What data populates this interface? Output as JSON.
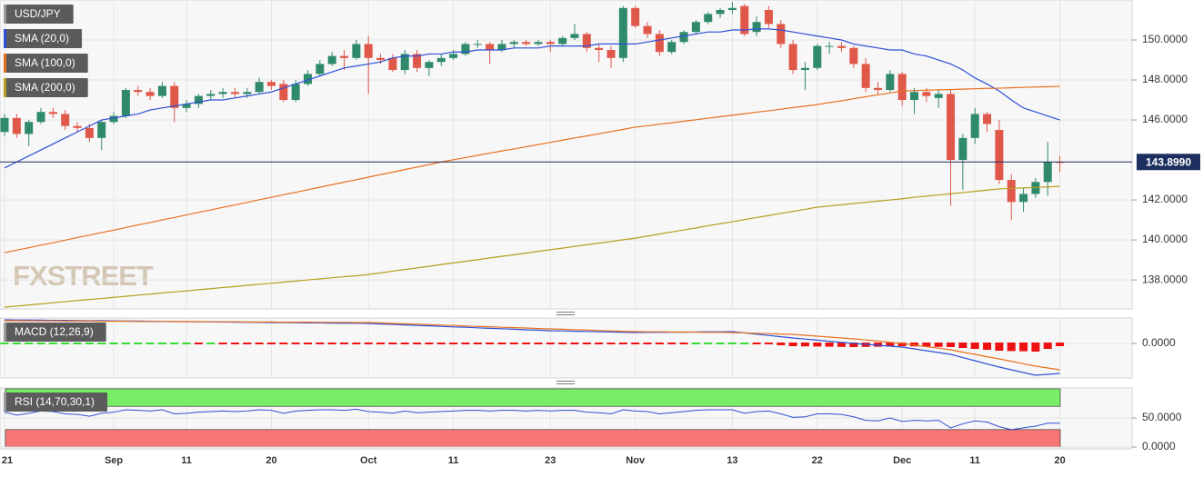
{
  "chart_data": [
    {
      "type": "candlestick",
      "name": "USD/JPY",
      "up_color": "#2f8a6c",
      "down_color": "#e0584a",
      "grid": true,
      "open": [
        145.4,
        146.1,
        145.3,
        145.9,
        146.4,
        146.3,
        145.7,
        145.6,
        145.1,
        145.9,
        146.2,
        147.5,
        147.4,
        147.2,
        147.7,
        146.6,
        146.8,
        147.2,
        147.3,
        147.4,
        147.3,
        147.4,
        147.9,
        147.8,
        147.0,
        147.8,
        148.3,
        148.8,
        149.2,
        149.1,
        149.8,
        149.1,
        149.1,
        148.5,
        149.3,
        148.6,
        148.9,
        149.1,
        149.3,
        149.8,
        149.8,
        149.5,
        149.8,
        149.9,
        149.8,
        149.9,
        149.8,
        150.1,
        150.3,
        149.6,
        149.5,
        149.1,
        151.6,
        150.7,
        150.3,
        149.4,
        149.9,
        150.4,
        150.9,
        151.3,
        151.5,
        151.7,
        150.4,
        151.5,
        150.8,
        149.8,
        148.5,
        148.6,
        149.7,
        149.7,
        149.6,
        148.8,
        147.6,
        147.5,
        148.3,
        147.0,
        147.4,
        147.1,
        147.3,
        144.0,
        145.1,
        146.3,
        145.5,
        143.0,
        141.9,
        142.3,
        142.9,
        143.9
      ],
      "high": [
        146.3,
        146.3,
        146.0,
        146.6,
        146.6,
        146.5,
        145.9,
        145.8,
        146.0,
        146.4,
        147.6,
        147.7,
        147.6,
        147.9,
        147.9,
        147.0,
        147.3,
        147.5,
        147.6,
        147.6,
        147.6,
        148.1,
        148.0,
        148.0,
        148.0,
        148.5,
        149.0,
        149.4,
        149.5,
        150.0,
        150.2,
        149.3,
        149.3,
        149.5,
        149.5,
        149.0,
        149.3,
        149.5,
        149.9,
        150.0,
        149.9,
        150.0,
        150.0,
        150.0,
        150.0,
        150.0,
        150.2,
        150.8,
        150.4,
        149.8,
        149.7,
        151.7,
        151.7,
        150.9,
        150.5,
        150.0,
        150.5,
        151.0,
        151.4,
        151.6,
        151.9,
        151.8,
        151.2,
        151.7,
        151.0,
        150.0,
        148.9,
        149.8,
        149.9,
        149.9,
        149.7,
        149.1,
        147.9,
        148.5,
        148.4,
        147.6,
        147.6,
        147.5,
        147.5,
        145.3,
        146.6,
        146.4,
        146.0,
        143.3,
        142.6,
        143.1,
        144.9,
        144.2
      ],
      "low": [
        145.2,
        145.1,
        144.7,
        145.8,
        146.1,
        145.5,
        145.4,
        144.9,
        144.5,
        145.8,
        146.1,
        147.2,
        147.0,
        147.1,
        145.9,
        146.4,
        146.6,
        147.0,
        147.1,
        147.1,
        147.1,
        147.3,
        147.5,
        146.9,
        146.9,
        147.7,
        148.2,
        148.7,
        148.5,
        149.0,
        147.3,
        148.8,
        148.4,
        148.3,
        148.4,
        148.2,
        148.7,
        149.0,
        149.2,
        149.6,
        148.8,
        149.4,
        149.6,
        149.7,
        149.7,
        149.4,
        149.7,
        150.0,
        149.4,
        148.9,
        148.6,
        148.9,
        150.6,
        150.1,
        149.2,
        149.3,
        149.8,
        150.3,
        150.8,
        151.1,
        151.3,
        150.2,
        150.2,
        150.6,
        149.6,
        148.3,
        147.5,
        148.5,
        149.3,
        149.4,
        148.6,
        147.4,
        147.3,
        147.4,
        146.7,
        146.3,
        146.9,
        146.6,
        141.7,
        142.5,
        144.8,
        145.4,
        142.8,
        141.0,
        141.4,
        142.1,
        142.2,
        143.4
      ],
      "close": [
        146.1,
        145.3,
        145.9,
        146.4,
        146.3,
        145.7,
        145.6,
        145.1,
        145.9,
        146.2,
        147.5,
        147.4,
        147.2,
        147.7,
        146.6,
        146.8,
        147.2,
        147.3,
        147.4,
        147.3,
        147.4,
        147.9,
        147.7,
        147.0,
        147.8,
        148.3,
        148.8,
        149.2,
        149.1,
        149.8,
        149.1,
        149.0,
        148.5,
        149.3,
        148.6,
        148.9,
        149.1,
        149.3,
        149.8,
        149.8,
        149.5,
        149.8,
        149.9,
        149.8,
        149.9,
        149.8,
        150.1,
        150.3,
        149.6,
        149.5,
        149.1,
        151.6,
        150.7,
        150.3,
        149.4,
        149.9,
        150.4,
        150.9,
        151.3,
        151.5,
        151.6,
        150.3,
        150.9,
        150.8,
        149.8,
        148.5,
        148.6,
        149.7,
        149.7,
        149.6,
        148.8,
        147.6,
        147.5,
        148.3,
        147.0,
        147.4,
        147.2,
        147.3,
        144.0,
        145.1,
        146.3,
        145.8,
        143.0,
        141.9,
        142.3,
        142.9,
        143.9,
        143.899
      ],
      "series": [
        {
          "name": "SMA (20,0)",
          "color": "#2f4fd6",
          "values": [
            143.6,
            143.9,
            144.2,
            144.5,
            144.8,
            145.1,
            145.4,
            145.7,
            146.0,
            146.1,
            146.2,
            146.3,
            146.5,
            146.6,
            146.7,
            146.8,
            146.9,
            147.0,
            147.0,
            147.1,
            147.2,
            147.3,
            147.4,
            147.6,
            147.8,
            148.0,
            148.2,
            148.4,
            148.6,
            148.7,
            148.8,
            148.9,
            149.1,
            149.2,
            149.2,
            149.3,
            149.3,
            149.4,
            149.4,
            149.5,
            149.5,
            149.5,
            149.6,
            149.6,
            149.6,
            149.7,
            149.7,
            149.7,
            149.7,
            149.8,
            149.8,
            149.8,
            149.8,
            149.9,
            150.0,
            150.1,
            150.2,
            150.3,
            150.4,
            150.4,
            150.5,
            150.5,
            150.55,
            150.55,
            150.5,
            150.4,
            150.3,
            150.2,
            150.1,
            150.0,
            149.8,
            149.7,
            149.6,
            149.5,
            149.5,
            149.3,
            149.2,
            149.0,
            148.8,
            148.5,
            148.1,
            147.8,
            147.45,
            147.0,
            146.6,
            146.4,
            146.2,
            146.0
          ]
        },
        {
          "name": "SMA (100,0)",
          "color": "#e8701f",
          "values": [
            139.36,
            139.49,
            139.61,
            139.74,
            139.86,
            139.99,
            140.12,
            140.24,
            140.37,
            140.49,
            140.62,
            140.75,
            140.87,
            141.0,
            141.12,
            141.25,
            141.38,
            141.5,
            141.63,
            141.75,
            141.88,
            142.01,
            142.13,
            142.26,
            142.38,
            142.51,
            142.64,
            142.76,
            142.89,
            143.01,
            143.14,
            143.27,
            143.39,
            143.52,
            143.64,
            143.77,
            143.9,
            144.01,
            144.12,
            144.23,
            144.34,
            144.45,
            144.55,
            144.66,
            144.77,
            144.88,
            144.99,
            145.1,
            145.2,
            145.31,
            145.42,
            145.53,
            145.64,
            145.71,
            145.79,
            145.86,
            145.94,
            146.01,
            146.09,
            146.16,
            146.24,
            146.31,
            146.39,
            146.46,
            146.54,
            146.62,
            146.69,
            146.77,
            146.87,
            146.96,
            147.06,
            147.16,
            147.26,
            147.35,
            147.45,
            147.47,
            147.49,
            147.51,
            147.52,
            147.54,
            147.56,
            147.58,
            147.59,
            147.61,
            147.63,
            147.65,
            147.66,
            147.68
          ]
        },
        {
          "name": "SMA (200,0)",
          "color": "#b59f1e",
          "values": [
            136.64,
            136.69,
            136.75,
            136.8,
            136.86,
            136.91,
            136.97,
            137.02,
            137.07,
            137.13,
            137.18,
            137.24,
            137.29,
            137.35,
            137.4,
            137.45,
            137.51,
            137.56,
            137.62,
            137.67,
            137.73,
            137.78,
            137.83,
            137.89,
            137.94,
            138.0,
            138.05,
            138.11,
            138.16,
            138.21,
            138.27,
            138.35,
            138.44,
            138.52,
            138.6,
            138.68,
            138.77,
            138.85,
            138.93,
            139.01,
            139.1,
            139.18,
            139.26,
            139.34,
            139.43,
            139.51,
            139.59,
            139.68,
            139.76,
            139.84,
            139.92,
            140.01,
            140.09,
            140.19,
            140.3,
            140.4,
            140.5,
            140.6,
            140.71,
            140.81,
            140.91,
            141.02,
            141.12,
            141.22,
            141.33,
            141.43,
            141.53,
            141.64,
            141.7,
            141.76,
            141.82,
            141.88,
            141.94,
            142.0,
            142.06,
            142.13,
            142.19,
            142.25,
            142.31,
            142.37,
            142.43,
            142.49,
            142.55,
            142.58,
            142.6,
            142.63,
            142.65,
            142.68
          ]
        }
      ],
      "ylim": [
        136.55,
        152
      ],
      "yticks": [
        {
          "value": 138,
          "label": "138.0000"
        },
        {
          "value": 140,
          "label": "140.0000"
        },
        {
          "value": 142,
          "label": "142.0000"
        },
        {
          "value": 146,
          "label": "146.0000"
        },
        {
          "value": 148,
          "label": "148.0000"
        },
        {
          "value": 150,
          "label": "150.0000"
        }
      ],
      "last_price": {
        "value": 143.899,
        "label": "143.8990"
      },
      "watermark": "FXSTREET"
    },
    {
      "type": "macd",
      "name": "MACD (12,26,9)",
      "series": [
        {
          "color": "#2f4fd6",
          "values": [
            1.3,
            1.29,
            1.29,
            1.28,
            1.27,
            1.27,
            1.26,
            1.25,
            1.25,
            1.24,
            1.23,
            1.23,
            1.22,
            1.21,
            1.21,
            1.2,
            1.19,
            1.19,
            1.18,
            1.17,
            1.17,
            1.16,
            1.15,
            1.15,
            1.14,
            1.13,
            1.13,
            1.12,
            1.11,
            1.11,
            1.1,
            1.07,
            1.05,
            1.02,
            0.99,
            0.97,
            0.94,
            0.91,
            0.89,
            0.86,
            0.83,
            0.81,
            0.78,
            0.75,
            0.73,
            0.7,
            0.69,
            0.67,
            0.66,
            0.64,
            0.63,
            0.61,
            0.6,
            0.61,
            0.61,
            0.62,
            0.62,
            0.63,
            0.64,
            0.64,
            0.65,
            0.58,
            0.51,
            0.44,
            0.37,
            0.3,
            0.24,
            0.18,
            0.12,
            0.06,
            0.0,
            -0.05,
            -0.1,
            -0.15,
            -0.2,
            -0.3,
            -0.4,
            -0.5,
            -0.6,
            -0.78,
            -0.95,
            -1.13,
            -1.3,
            -1.45,
            -1.6,
            -1.75,
            -1.7,
            -1.65
          ]
        },
        {
          "color": "#e8701f",
          "values": [
            1.25,
            1.25,
            1.24,
            1.24,
            1.24,
            1.23,
            1.23,
            1.23,
            1.22,
            1.22,
            1.22,
            1.21,
            1.21,
            1.21,
            1.2,
            1.2,
            1.2,
            1.19,
            1.19,
            1.19,
            1.18,
            1.18,
            1.18,
            1.17,
            1.17,
            1.17,
            1.16,
            1.16,
            1.16,
            1.15,
            1.15,
            1.13,
            1.1,
            1.08,
            1.06,
            1.03,
            1.01,
            0.99,
            0.96,
            0.94,
            0.92,
            0.89,
            0.87,
            0.85,
            0.82,
            0.8,
            0.78,
            0.76,
            0.74,
            0.71,
            0.69,
            0.67,
            0.65,
            0.64,
            0.64,
            0.63,
            0.63,
            0.62,
            0.61,
            0.61,
            0.6,
            0.58,
            0.56,
            0.54,
            0.52,
            0.5,
            0.45,
            0.4,
            0.35,
            0.3,
            0.25,
            0.19,
            0.13,
            0.06,
            0.0,
            -0.09,
            -0.18,
            -0.26,
            -0.35,
            -0.48,
            -0.6,
            -0.73,
            -0.85,
            -0.98,
            -1.12,
            -1.25,
            -1.35,
            -1.45
          ]
        }
      ],
      "histogram": {
        "up_color": "#33dd33",
        "down_color": "#ee1111",
        "values": [
          0.05,
          0.04,
          0.05,
          0.04,
          0.03,
          0.04,
          0.03,
          0.02,
          0.03,
          0.02,
          0.01,
          0.02,
          0.01,
          0.0,
          0.01,
          0.0,
          -0.01,
          0.0,
          -0.01,
          -0.02,
          -0.01,
          -0.02,
          -0.03,
          -0.02,
          -0.03,
          -0.04,
          -0.03,
          -0.04,
          -0.05,
          -0.04,
          -0.05,
          -0.06,
          -0.05,
          -0.06,
          -0.07,
          -0.06,
          -0.07,
          -0.08,
          -0.07,
          -0.08,
          -0.09,
          -0.08,
          -0.09,
          -0.1,
          -0.09,
          -0.1,
          -0.09,
          -0.09,
          -0.08,
          -0.07,
          -0.06,
          -0.06,
          -0.05,
          -0.03,
          -0.03,
          -0.01,
          -0.01,
          0.01,
          0.03,
          0.03,
          0.05,
          0.0,
          -0.05,
          -0.1,
          -0.15,
          -0.2,
          -0.21,
          -0.22,
          -0.23,
          -0.24,
          -0.25,
          -0.24,
          -0.23,
          -0.21,
          -0.2,
          -0.21,
          -0.22,
          -0.24,
          -0.25,
          -0.3,
          -0.35,
          -0.4,
          -0.45,
          -0.47,
          -0.48,
          -0.5,
          -0.35,
          -0.2
        ]
      },
      "ylim": [
        -1.9,
        1.4
      ],
      "yticks": [
        {
          "value": 0,
          "label": "0.0000"
        }
      ]
    },
    {
      "type": "rsi",
      "name": "RSI (14,70,30,1)",
      "color": "#2f4fd6",
      "values": [
        60,
        55,
        58,
        62,
        61,
        57,
        56,
        53,
        58,
        60,
        64,
        63,
        62,
        64,
        57,
        58,
        60,
        61,
        62,
        61,
        62,
        64,
        63,
        58,
        62,
        63,
        64,
        64,
        63,
        65,
        61,
        60,
        58,
        62,
        59,
        60,
        61,
        62,
        63,
        63,
        62,
        63,
        63,
        62,
        63,
        62,
        63,
        63,
        60,
        59,
        57,
        64,
        62,
        61,
        57,
        59,
        61,
        63,
        64,
        64,
        64,
        58,
        61,
        62,
        57,
        51,
        52,
        57,
        57,
        56,
        52,
        46,
        45,
        50,
        44,
        46,
        45,
        46,
        33,
        40,
        45,
        43,
        35,
        30,
        33,
        36,
        41,
        41
      ],
      "zones": [
        {
          "from": 70,
          "to": 100,
          "color": "#77ee66"
        },
        {
          "from": 0,
          "to": 30,
          "color": "#f77777"
        }
      ],
      "ylim": [
        -3,
        101.5
      ],
      "yticks": [
        {
          "value": 50,
          "label": "50.0000"
        },
        {
          "value": 0,
          "label": "0.0000"
        }
      ],
      "categories": [
        "21",
        null,
        null,
        null,
        null,
        null,
        null,
        null,
        null,
        "Sep",
        null,
        null,
        null,
        null,
        null,
        "11",
        null,
        null,
        null,
        null,
        null,
        null,
        "20",
        null,
        null,
        null,
        null,
        null,
        null,
        null,
        "Oct",
        null,
        null,
        null,
        null,
        null,
        null,
        "11",
        null,
        null,
        null,
        null,
        null,
        null,
        null,
        "23",
        null,
        null,
        null,
        null,
        null,
        null,
        "Nov",
        null,
        null,
        null,
        null,
        null,
        null,
        null,
        "13",
        null,
        null,
        null,
        null,
        null,
        null,
        "22",
        null,
        null,
        null,
        null,
        null,
        null,
        "Dec",
        null,
        null,
        null,
        null,
        null,
        "11",
        null,
        null,
        null,
        null,
        null,
        null,
        "20"
      ]
    }
  ]
}
